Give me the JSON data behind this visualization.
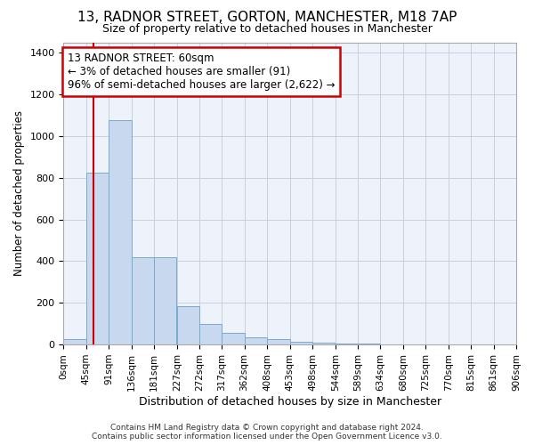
{
  "title": "13, RADNOR STREET, GORTON, MANCHESTER, M18 7AP",
  "subtitle": "Size of property relative to detached houses in Manchester",
  "xlabel": "Distribution of detached houses by size in Manchester",
  "ylabel": "Number of detached properties",
  "footer_line1": "Contains HM Land Registry data © Crown copyright and database right 2024.",
  "footer_line2": "Contains public sector information licensed under the Open Government Licence v3.0.",
  "bar_edges": [
    0,
    45,
    91,
    136,
    181,
    227,
    272,
    317,
    362,
    408,
    453,
    498,
    544,
    589,
    634,
    680,
    725,
    770,
    815,
    861,
    906
  ],
  "bar_heights": [
    28,
    825,
    1075,
    420,
    420,
    182,
    100,
    57,
    35,
    28,
    15,
    8,
    5,
    3,
    2,
    2,
    1,
    1,
    0,
    0,
    0
  ],
  "bar_color": "#c8d8ee",
  "bar_edge_color": "#7aaad0",
  "vline_x": 60,
  "vline_color": "#cc0000",
  "annotation_text": "13 RADNOR STREET: 60sqm\n← 3% of detached houses are smaller (91)\n96% of semi-detached houses are larger (2,622) →",
  "annotation_box_color": "#cc0000",
  "ylim": [
    0,
    1450
  ],
  "yticks": [
    0,
    200,
    400,
    600,
    800,
    1000,
    1200,
    1400
  ],
  "tick_labels": [
    "0sqm",
    "45sqm",
    "91sqm",
    "136sqm",
    "181sqm",
    "227sqm",
    "272sqm",
    "317sqm",
    "362sqm",
    "408sqm",
    "453sqm",
    "498sqm",
    "544sqm",
    "589sqm",
    "634sqm",
    "680sqm",
    "725sqm",
    "770sqm",
    "815sqm",
    "861sqm",
    "906sqm"
  ],
  "bg_color": "#eef2fa",
  "grid_color": "#c8d0e0",
  "title_fontsize": 11,
  "subtitle_fontsize": 9,
  "xlabel_fontsize": 9,
  "ylabel_fontsize": 8.5,
  "tick_fontsize": 7.5,
  "ytick_fontsize": 8,
  "footer_fontsize": 6.5,
  "ann_fontsize": 8.5
}
